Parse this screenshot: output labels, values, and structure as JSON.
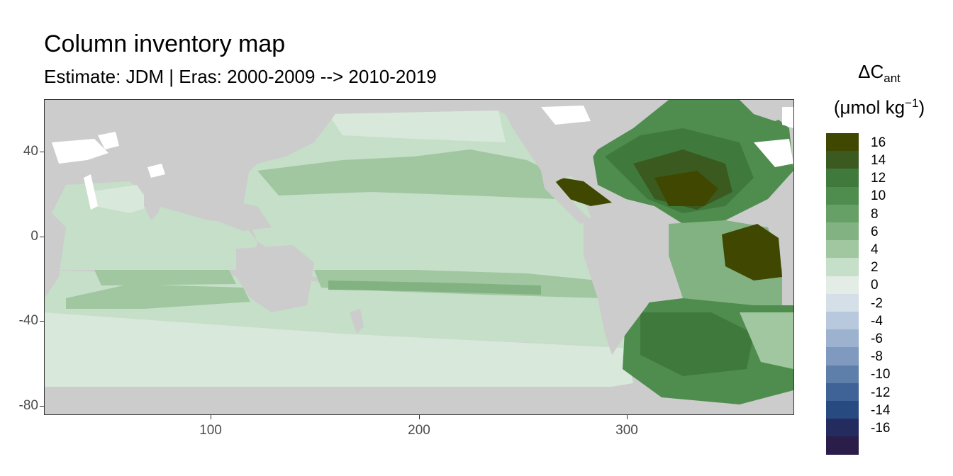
{
  "title": "Column inventory map",
  "subtitle": "Estimate: JDM  | Eras: 2000-2009 --> 2010-2019",
  "legend": {
    "title_main": "ΔC",
    "title_sub": "ant",
    "unit_prefix": "(μmol kg",
    "unit_sup": "−1",
    "unit_suffix": ")",
    "bins": [
      {
        "label": "16",
        "color": "#404700"
      },
      {
        "label": "14",
        "color": "#3b5a20"
      },
      {
        "label": "12",
        "color": "#3f7a3c"
      },
      {
        "label": "10",
        "color": "#4f8d4f"
      },
      {
        "label": "8",
        "color": "#66a066"
      },
      {
        "label": "6",
        "color": "#82b282"
      },
      {
        "label": "4",
        "color": "#a0c7a0"
      },
      {
        "label": "2",
        "color": "#c6dfc8"
      },
      {
        "label": "0",
        "color": "#e3ede6"
      },
      {
        "label": "-2",
        "color": "#d5dfe8"
      },
      {
        "label": "-4",
        "color": "#b9c9dd"
      },
      {
        "label": "-6",
        "color": "#9db2cf"
      },
      {
        "label": "-8",
        "color": "#809abf"
      },
      {
        "label": "-10",
        "color": "#5f7fab"
      },
      {
        "label": "-12",
        "color": "#3f6396"
      },
      {
        "label": "-14",
        "color": "#274a80"
      },
      {
        "label": "-16",
        "color": "#232b5f"
      },
      {
        "label": "",
        "color": "#2a1d4a"
      }
    ]
  },
  "axes": {
    "x_ticks": [
      "100",
      "200",
      "300"
    ],
    "y_ticks": [
      "40",
      "0",
      "-40",
      "-80"
    ]
  },
  "colors": {
    "land": "#cccccc",
    "missing": "#ffffff"
  }
}
